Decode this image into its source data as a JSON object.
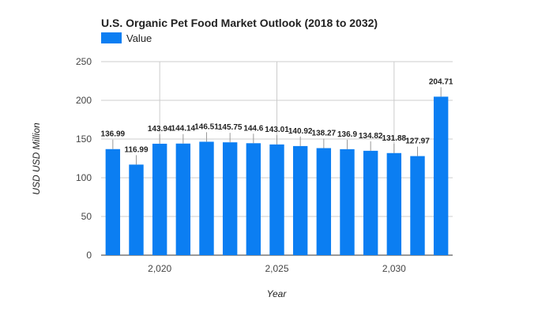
{
  "chart_data": {
    "type": "bar",
    "title": "U.S. Organic Pet Food Market Outlook (2018 to 2032)",
    "xlabel": "Year",
    "ylabel": "USD USD Million",
    "legend": {
      "position": "top-left",
      "entries": [
        "Value"
      ]
    },
    "grid": true,
    "ylim": [
      0,
      250
    ],
    "yticks": [
      0,
      50,
      100,
      150,
      200,
      250
    ],
    "xticks": [
      2020,
      2025,
      2030
    ],
    "xtick_labels": [
      "2,020",
      "2,025",
      "2,030"
    ],
    "xlim": [
      2017.5,
      2032.5
    ],
    "color": "#0b7ef2",
    "categories": [
      2018,
      2019,
      2020,
      2021,
      2022,
      2023,
      2024,
      2025,
      2026,
      2027,
      2028,
      2029,
      2030,
      2031,
      2032
    ],
    "series": [
      {
        "name": "Value",
        "values": [
          136.99,
          116.99,
          143.94,
          144.14,
          146.51,
          145.75,
          144.6,
          143.01,
          140.92,
          138.27,
          136.9,
          134.82,
          131.88,
          127.97,
          204.71
        ],
        "labels": [
          "136.99",
          "116.99",
          "143.94",
          "144.14",
          "146.51",
          "145.75",
          "144.6",
          "143.01",
          "140.92",
          "138.27",
          "136.9",
          "134.82",
          "131.88",
          "127.97",
          "204.71"
        ]
      }
    ]
  }
}
